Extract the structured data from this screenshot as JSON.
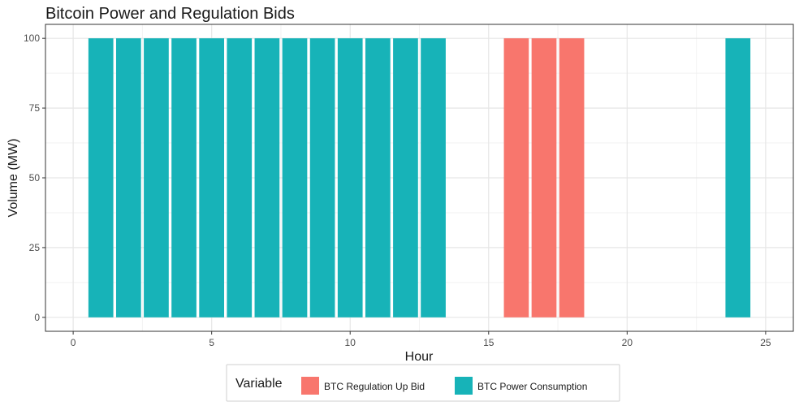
{
  "chart_data": {
    "type": "bar",
    "title": "Bitcoin Power and Regulation Bids",
    "xlabel": "Hour",
    "ylabel": "Volume (MW)",
    "xlim": [
      -1,
      26
    ],
    "ylim": [
      -5,
      105
    ],
    "x_ticks": [
      0,
      5,
      10,
      15,
      20,
      25
    ],
    "y_ticks": [
      0,
      25,
      50,
      75,
      100
    ],
    "grid": true,
    "legend": {
      "title": "Variable",
      "placement": "bottom"
    },
    "series": [
      {
        "name": "BTC Regulation Up Bid",
        "color": "#F8766D",
        "points": [
          {
            "x": 16,
            "y": 100
          },
          {
            "x": 17,
            "y": 100
          },
          {
            "x": 18,
            "y": 100
          }
        ]
      },
      {
        "name": "BTC Power Consumption",
        "color": "#17B3B8",
        "points": [
          {
            "x": 1,
            "y": 100
          },
          {
            "x": 2,
            "y": 100
          },
          {
            "x": 3,
            "y": 100
          },
          {
            "x": 4,
            "y": 100
          },
          {
            "x": 5,
            "y": 100
          },
          {
            "x": 6,
            "y": 100
          },
          {
            "x": 7,
            "y": 100
          },
          {
            "x": 8,
            "y": 100
          },
          {
            "x": 9,
            "y": 100
          },
          {
            "x": 10,
            "y": 100
          },
          {
            "x": 11,
            "y": 100
          },
          {
            "x": 12,
            "y": 100
          },
          {
            "x": 13,
            "y": 100
          },
          {
            "x": 24,
            "y": 100
          }
        ]
      }
    ]
  }
}
